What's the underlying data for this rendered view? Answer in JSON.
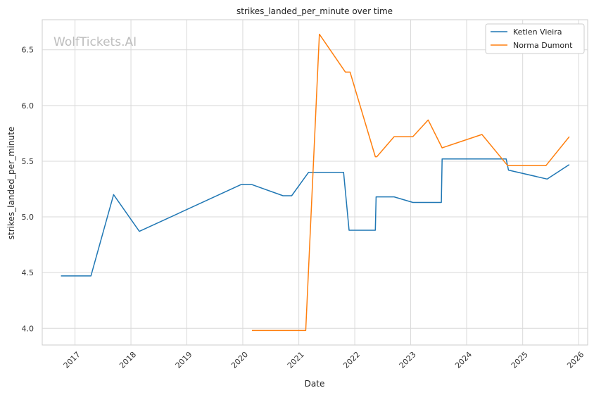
{
  "watermark": "WolfTickets.AI",
  "chart_data": {
    "type": "line",
    "title": "strikes_landed_per_minute over time",
    "xlabel": "Date",
    "ylabel": "strikes_landed_per_minute",
    "x_ticks": [
      "2017",
      "2018",
      "2019",
      "2020",
      "2021",
      "2022",
      "2023",
      "2024",
      "2025",
      "2026"
    ],
    "y_ticks": [
      "4.0",
      "4.5",
      "5.0",
      "5.5",
      "6.0",
      "6.5"
    ],
    "xlim": [
      "2016-06-01",
      "2026-03-01"
    ],
    "ylim": [
      3.85,
      6.77
    ],
    "grid": true,
    "legend_position": "top-right",
    "series": [
      {
        "name": "Ketlen Vieira",
        "color": "#1f77b4",
        "points": [
          [
            "2016-10-01",
            4.47
          ],
          [
            "2017-04-15",
            4.47
          ],
          [
            "2017-09-10",
            5.2
          ],
          [
            "2018-02-25",
            4.87
          ],
          [
            "2019-12-20",
            5.29
          ],
          [
            "2020-03-01",
            5.29
          ],
          [
            "2020-09-20",
            5.19
          ],
          [
            "2020-11-15",
            5.19
          ],
          [
            "2021-03-05",
            5.4
          ],
          [
            "2021-10-20",
            5.4
          ],
          [
            "2021-11-25",
            4.88
          ],
          [
            "2022-05-15",
            4.88
          ],
          [
            "2022-05-20",
            5.18
          ],
          [
            "2022-09-15",
            5.18
          ],
          [
            "2023-01-15",
            5.13
          ],
          [
            "2023-07-20",
            5.13
          ],
          [
            "2023-07-25",
            5.52
          ],
          [
            "2024-09-15",
            5.52
          ],
          [
            "2024-09-30",
            5.42
          ],
          [
            "2025-06-10",
            5.34
          ],
          [
            "2025-11-01",
            5.47
          ]
        ]
      },
      {
        "name": "Norma Dumont",
        "color": "#ff7f0e",
        "points": [
          [
            "2020-03-01",
            3.98
          ],
          [
            "2021-02-15",
            3.98
          ],
          [
            "2021-05-15",
            6.64
          ],
          [
            "2021-11-01",
            6.3
          ],
          [
            "2021-12-01",
            6.3
          ],
          [
            "2022-05-15",
            5.54
          ],
          [
            "2022-05-25",
            5.54
          ],
          [
            "2022-09-15",
            5.72
          ],
          [
            "2023-01-15",
            5.72
          ],
          [
            "2023-04-25",
            5.87
          ],
          [
            "2023-07-25",
            5.62
          ],
          [
            "2024-04-10",
            5.74
          ],
          [
            "2024-09-25",
            5.46
          ],
          [
            "2025-06-01",
            5.46
          ],
          [
            "2025-11-01",
            5.72
          ]
        ]
      }
    ]
  }
}
